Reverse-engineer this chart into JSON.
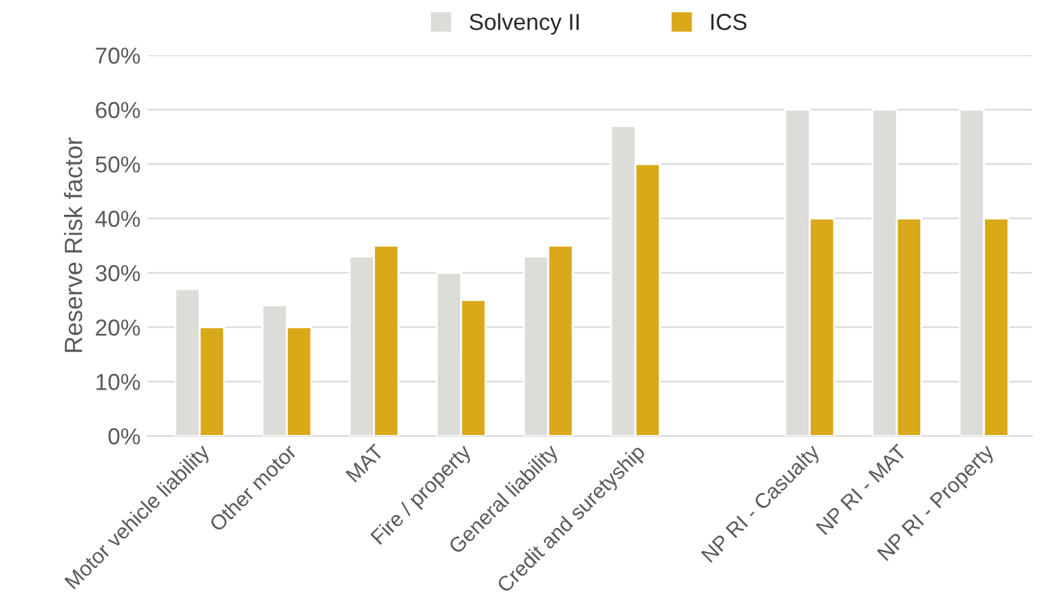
{
  "chart_data": {
    "type": "bar",
    "ylabel": "Reserve Risk factor",
    "categories": [
      "Motor vehicle liability",
      "Other motor",
      "MAT",
      "Fire / property",
      "General liability",
      "Credit and suretyship",
      null,
      "NP RI - Casualty",
      "NP RI - MAT",
      "NP RI - Property"
    ],
    "series": [
      {
        "name": "Solvency II",
        "color": "#dcdcd8",
        "values": [
          27,
          24,
          33,
          30,
          33,
          57,
          null,
          60,
          60,
          60
        ]
      },
      {
        "name": "ICS",
        "color": "#d9a91a",
        "values": [
          20,
          20,
          35,
          25,
          35,
          50,
          null,
          40,
          40,
          40
        ]
      }
    ],
    "ylim": [
      0,
      70
    ],
    "yticks": [
      {
        "value": 0,
        "label": "0%"
      },
      {
        "value": 10,
        "label": "10%"
      },
      {
        "value": 20,
        "label": "20%"
      },
      {
        "value": 30,
        "label": "30%"
      },
      {
        "value": 40,
        "label": "40%"
      },
      {
        "value": 50,
        "label": "50%"
      },
      {
        "value": 60,
        "label": "60%"
      },
      {
        "value": 70,
        "label": "70%"
      }
    ],
    "grid": "y",
    "legend": "top"
  }
}
